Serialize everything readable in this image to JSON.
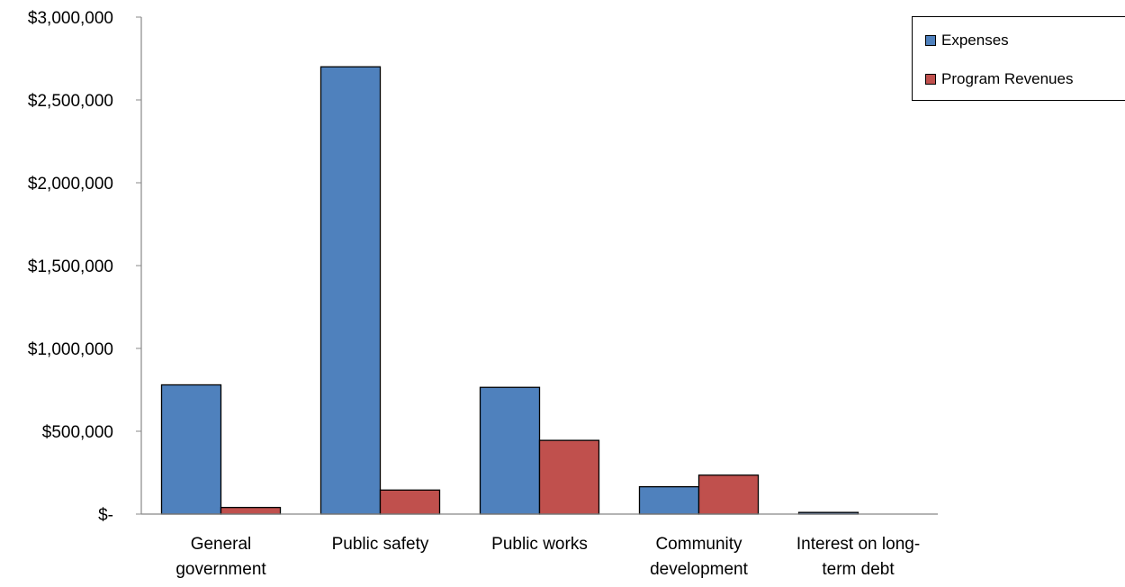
{
  "chart_data": {
    "type": "bar",
    "categories": [
      [
        "General",
        "government"
      ],
      [
        "Public safety"
      ],
      [
        "Public works"
      ],
      [
        "Community",
        "development"
      ],
      [
        "Interest on long-",
        "term debt"
      ]
    ],
    "series": [
      {
        "name": "Expenses",
        "color": "#4f81bd",
        "values": [
          780000,
          2700000,
          765000,
          165000,
          10000
        ]
      },
      {
        "name": "Program Revenues",
        "color": "#c0504d",
        "values": [
          40000,
          145000,
          445000,
          235000,
          0
        ]
      }
    ],
    "ylim": [
      0,
      3000000
    ],
    "yticks": [
      {
        "value": 0,
        "label": "$-"
      },
      {
        "value": 500000,
        "label": "$500,000"
      },
      {
        "value": 1000000,
        "label": "$1,000,000"
      },
      {
        "value": 1500000,
        "label": "$1,500,000"
      },
      {
        "value": 2000000,
        "label": "$2,000,000"
      },
      {
        "value": 2500000,
        "label": "$2,500,000"
      },
      {
        "value": 3000000,
        "label": "$3,000,000"
      }
    ],
    "grid": false,
    "legend": "top-right"
  }
}
